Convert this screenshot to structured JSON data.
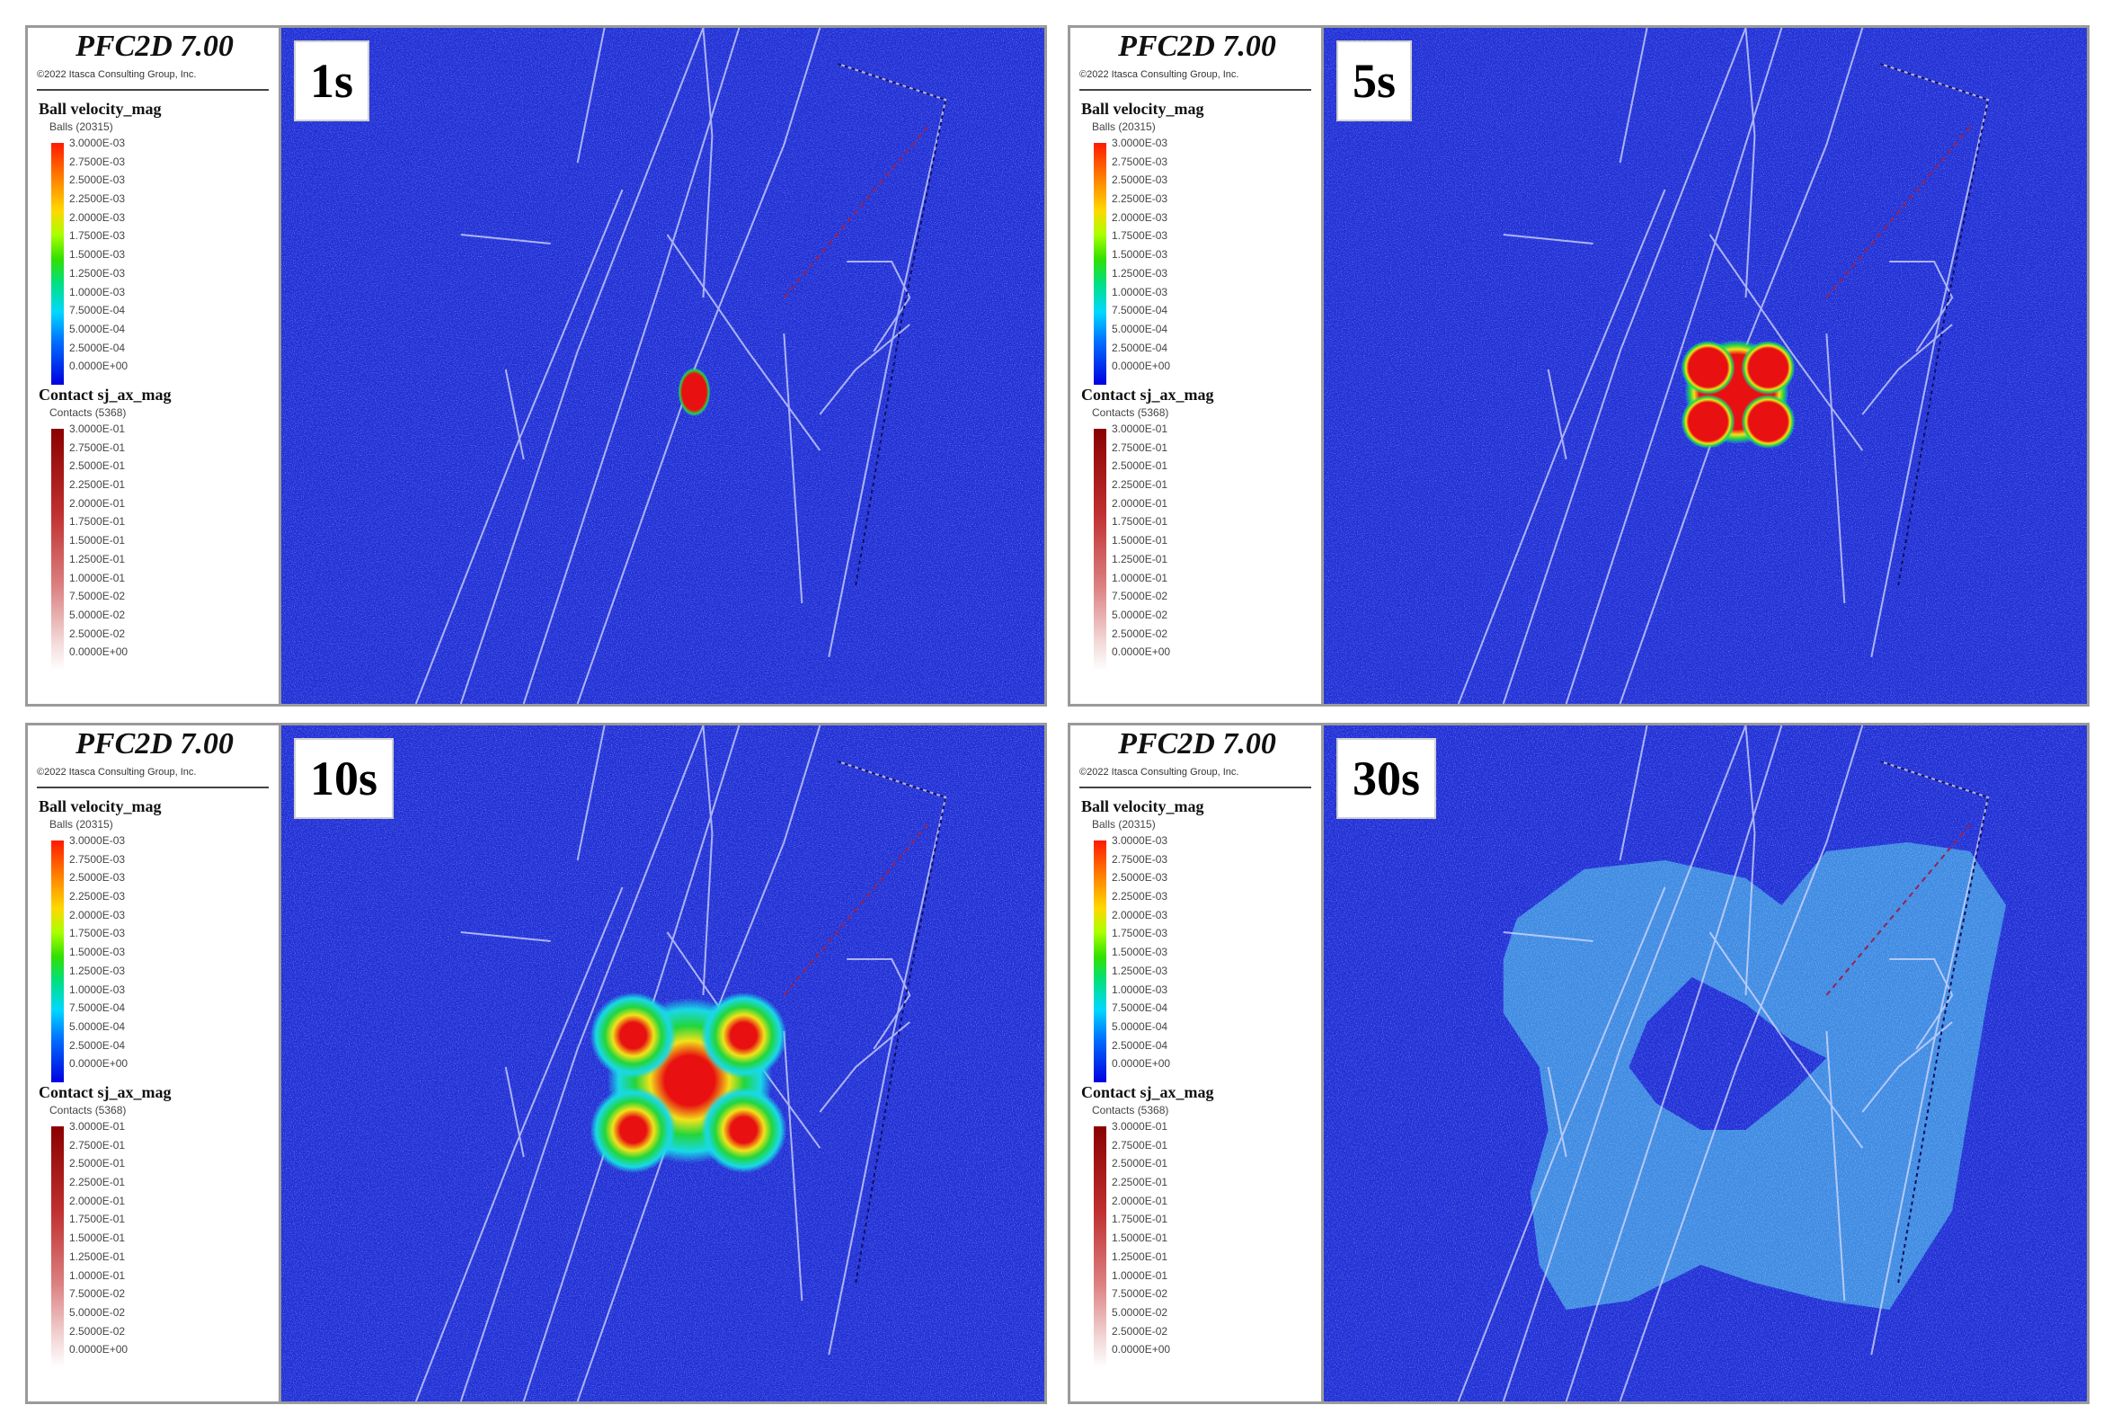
{
  "panels": [
    {
      "time": "1s",
      "app_title": "PFC2D 7.00",
      "copyright": "©2022 Itasca Consulting Group, Inc.",
      "ball_title": "Ball velocity_mag",
      "ball_subtitle": "Balls (20315)",
      "ball_ticks": [
        "3.0000E-03",
        "2.7500E-03",
        "2.5000E-03",
        "2.2500E-03",
        "2.0000E-03",
        "1.7500E-03",
        "1.5000E-03",
        "1.2500E-03",
        "1.0000E-03",
        "7.5000E-04",
        "5.0000E-04",
        "2.5000E-04",
        "0.0000E+00"
      ],
      "contact_title": "Contact sj_ax_mag",
      "contact_subtitle": "Contacts (5368)",
      "contact_ticks": [
        "3.0000E-01",
        "2.7500E-01",
        "2.5000E-01",
        "2.2500E-01",
        "2.0000E-01",
        "1.7500E-01",
        "1.5000E-01",
        "1.2500E-01",
        "1.0000E-01",
        "7.5000E-02",
        "5.0000E-02",
        "2.5000E-02",
        "0.0000E+00"
      ]
    },
    {
      "time": "5s",
      "app_title": "PFC2D 7.00",
      "copyright": "©2022 Itasca Consulting Group, Inc.",
      "ball_title": "Ball velocity_mag",
      "ball_subtitle": "Balls (20315)",
      "ball_ticks": [
        "3.0000E-03",
        "2.7500E-03",
        "2.5000E-03",
        "2.2500E-03",
        "2.0000E-03",
        "1.7500E-03",
        "1.5000E-03",
        "1.2500E-03",
        "1.0000E-03",
        "7.5000E-04",
        "5.0000E-04",
        "2.5000E-04",
        "0.0000E+00"
      ],
      "contact_title": "Contact sj_ax_mag",
      "contact_subtitle": "Contacts (5368)",
      "contact_ticks": [
        "3.0000E-01",
        "2.7500E-01",
        "2.5000E-01",
        "2.2500E-01",
        "2.0000E-01",
        "1.7500E-01",
        "1.5000E-01",
        "1.2500E-01",
        "1.0000E-01",
        "7.5000E-02",
        "5.0000E-02",
        "2.5000E-02",
        "0.0000E+00"
      ]
    },
    {
      "time": "10s",
      "app_title": "PFC2D 7.00",
      "copyright": "©2022 Itasca Consulting Group, Inc.",
      "ball_title": "Ball velocity_mag",
      "ball_subtitle": "Balls (20315)",
      "ball_ticks": [
        "3.0000E-03",
        "2.7500E-03",
        "2.5000E-03",
        "2.2500E-03",
        "2.0000E-03",
        "1.7500E-03",
        "1.5000E-03",
        "1.2500E-03",
        "1.0000E-03",
        "7.5000E-04",
        "5.0000E-04",
        "2.5000E-04",
        "0.0000E+00"
      ],
      "contact_title": "Contact sj_ax_mag",
      "contact_subtitle": "Contacts (5368)",
      "contact_ticks": [
        "3.0000E-01",
        "2.7500E-01",
        "2.5000E-01",
        "2.2500E-01",
        "2.0000E-01",
        "1.7500E-01",
        "1.5000E-01",
        "1.2500E-01",
        "1.0000E-01",
        "7.5000E-02",
        "5.0000E-02",
        "2.5000E-02",
        "0.0000E+00"
      ]
    },
    {
      "time": "30s",
      "app_title": "PFC2D 7.00",
      "copyright": "©2022 Itasca Consulting Group, Inc.",
      "ball_title": "Ball velocity_mag",
      "ball_subtitle": "Balls (20315)",
      "ball_ticks": [
        "3.0000E-03",
        "2.7500E-03",
        "2.5000E-03",
        "2.2500E-03",
        "2.0000E-03",
        "1.7500E-03",
        "1.5000E-03",
        "1.2500E-03",
        "1.0000E-03",
        "7.5000E-04",
        "5.0000E-04",
        "2.5000E-04",
        "0.0000E+00"
      ],
      "contact_title": "Contact sj_ax_mag",
      "contact_subtitle": "Contacts (5368)",
      "contact_ticks": [
        "3.0000E-01",
        "2.7500E-01",
        "2.5000E-01",
        "2.2500E-01",
        "2.0000E-01",
        "1.7500E-01",
        "1.5000E-01",
        "1.2500E-01",
        "1.0000E-01",
        "7.5000E-02",
        "5.0000E-02",
        "2.5000E-02",
        "0.0000E+00"
      ]
    }
  ],
  "colors": {
    "background_blue": "#1f2fd6",
    "fracture_white": "#d8dcff",
    "high_red": "#e81010",
    "mid_yellow": "#f2e21a",
    "mid_green": "#22d63a",
    "low_cyan": "#19d8e8",
    "diffused_blue": "#3f8fe4"
  }
}
